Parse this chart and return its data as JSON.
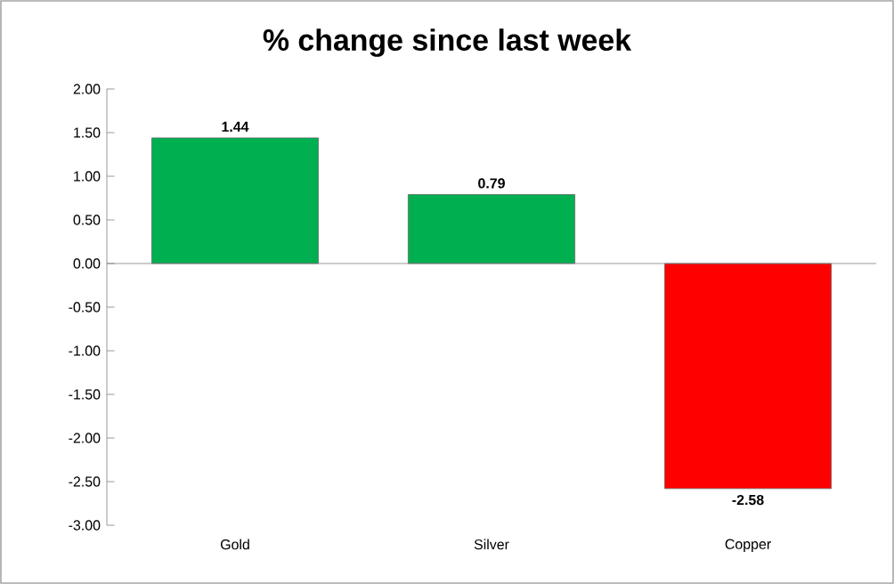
{
  "chart_data": {
    "type": "bar",
    "title": "% change since last week",
    "categories": [
      "Gold",
      "Silver",
      "Copper"
    ],
    "values": [
      1.44,
      0.79,
      -2.58
    ],
    "colors": [
      "#00b050",
      "#00b050",
      "#ff0000"
    ],
    "ylim": [
      -3,
      2
    ],
    "yticks": [
      {
        "value": -3,
        "label": "-3.00"
      },
      {
        "value": -2.5,
        "label": "-2.50"
      },
      {
        "value": -2,
        "label": "-2.00"
      },
      {
        "value": -1.5,
        "label": "-1.50"
      },
      {
        "value": -1,
        "label": "-1.00"
      },
      {
        "value": -0.5,
        "label": "-0.50"
      },
      {
        "value": 0,
        "label": "0.00"
      },
      {
        "value": 0.5,
        "label": "0.50"
      },
      {
        "value": 1,
        "label": "1.00"
      },
      {
        "value": 1.5,
        "label": "1.50"
      },
      {
        "value": 2,
        "label": "2.00"
      }
    ],
    "data_labels": true
  }
}
